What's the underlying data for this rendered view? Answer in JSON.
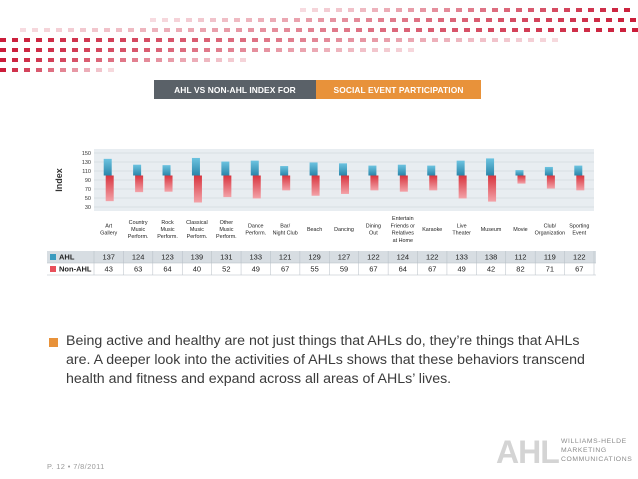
{
  "header": {
    "title_left": "AHL VS NON-AHL INDEX FOR",
    "title_right": "SOCIAL EVENT PARTICIPATION"
  },
  "chart_data": {
    "type": "bar",
    "ylabel": "Index",
    "ylim": [
      30,
      150
    ],
    "yticks": [
      150,
      130,
      110,
      90,
      70,
      50,
      30
    ],
    "baseline": 100,
    "categories": [
      [
        "Art",
        "Gallery"
      ],
      [
        "Country",
        "Music",
        "Perform."
      ],
      [
        "Rock",
        "Music",
        "Perform."
      ],
      [
        "Classical",
        "Music",
        "Perform."
      ],
      [
        "Other",
        "Music",
        "Perform."
      ],
      [
        "Dance",
        "Perform."
      ],
      [
        "Bar/",
        "Night Club"
      ],
      [
        "Beach"
      ],
      [
        "Dancing"
      ],
      [
        "Dining",
        "Out"
      ],
      [
        "Entertain",
        "Friends or",
        "Relatives",
        "at Home"
      ],
      [
        "Karaoke"
      ],
      [
        "Live",
        "Theater"
      ],
      [
        "Museum"
      ],
      [
        "Movie"
      ],
      [
        "Club/",
        "Organization"
      ],
      [
        "Sporting",
        "Event"
      ]
    ],
    "series": [
      {
        "name": "AHL",
        "color": "#3a9bbf",
        "values": [
          "137",
          "124",
          "123",
          "139",
          "131",
          "133",
          "121",
          "129",
          "127",
          "122",
          "124",
          "122",
          "133",
          "138",
          "112",
          "119",
          "122"
        ]
      },
      {
        "name": "Non-AHL",
        "color": "#e8505b",
        "values": [
          "43",
          "63",
          "64",
          "40",
          "52",
          "49",
          "67",
          "55",
          "59",
          "67",
          "64",
          "67",
          "49",
          "42",
          "82",
          "71",
          "67"
        ]
      }
    ]
  },
  "body_text": "Being active and healthy are not just things that AHLs do, they’re things that AHLs are. A deeper look into the activities of AHLs shows that these behaviors transcend health and fitness and expand across all areas of AHLs’ lives.",
  "footer": {
    "page": "P. 12  •  7/8/2011"
  },
  "logo": {
    "mark": "AHL",
    "lines": [
      "WILLIAMS-HELDE",
      "MARKETING",
      "COMMUNICATIONS"
    ]
  },
  "colors": {
    "accent": "#e8923a",
    "title_gray": "#5a6168",
    "ahl_blue": "#3a9bbf",
    "nonahl_red": "#e8505b",
    "deco_red": "#c8102e"
  }
}
